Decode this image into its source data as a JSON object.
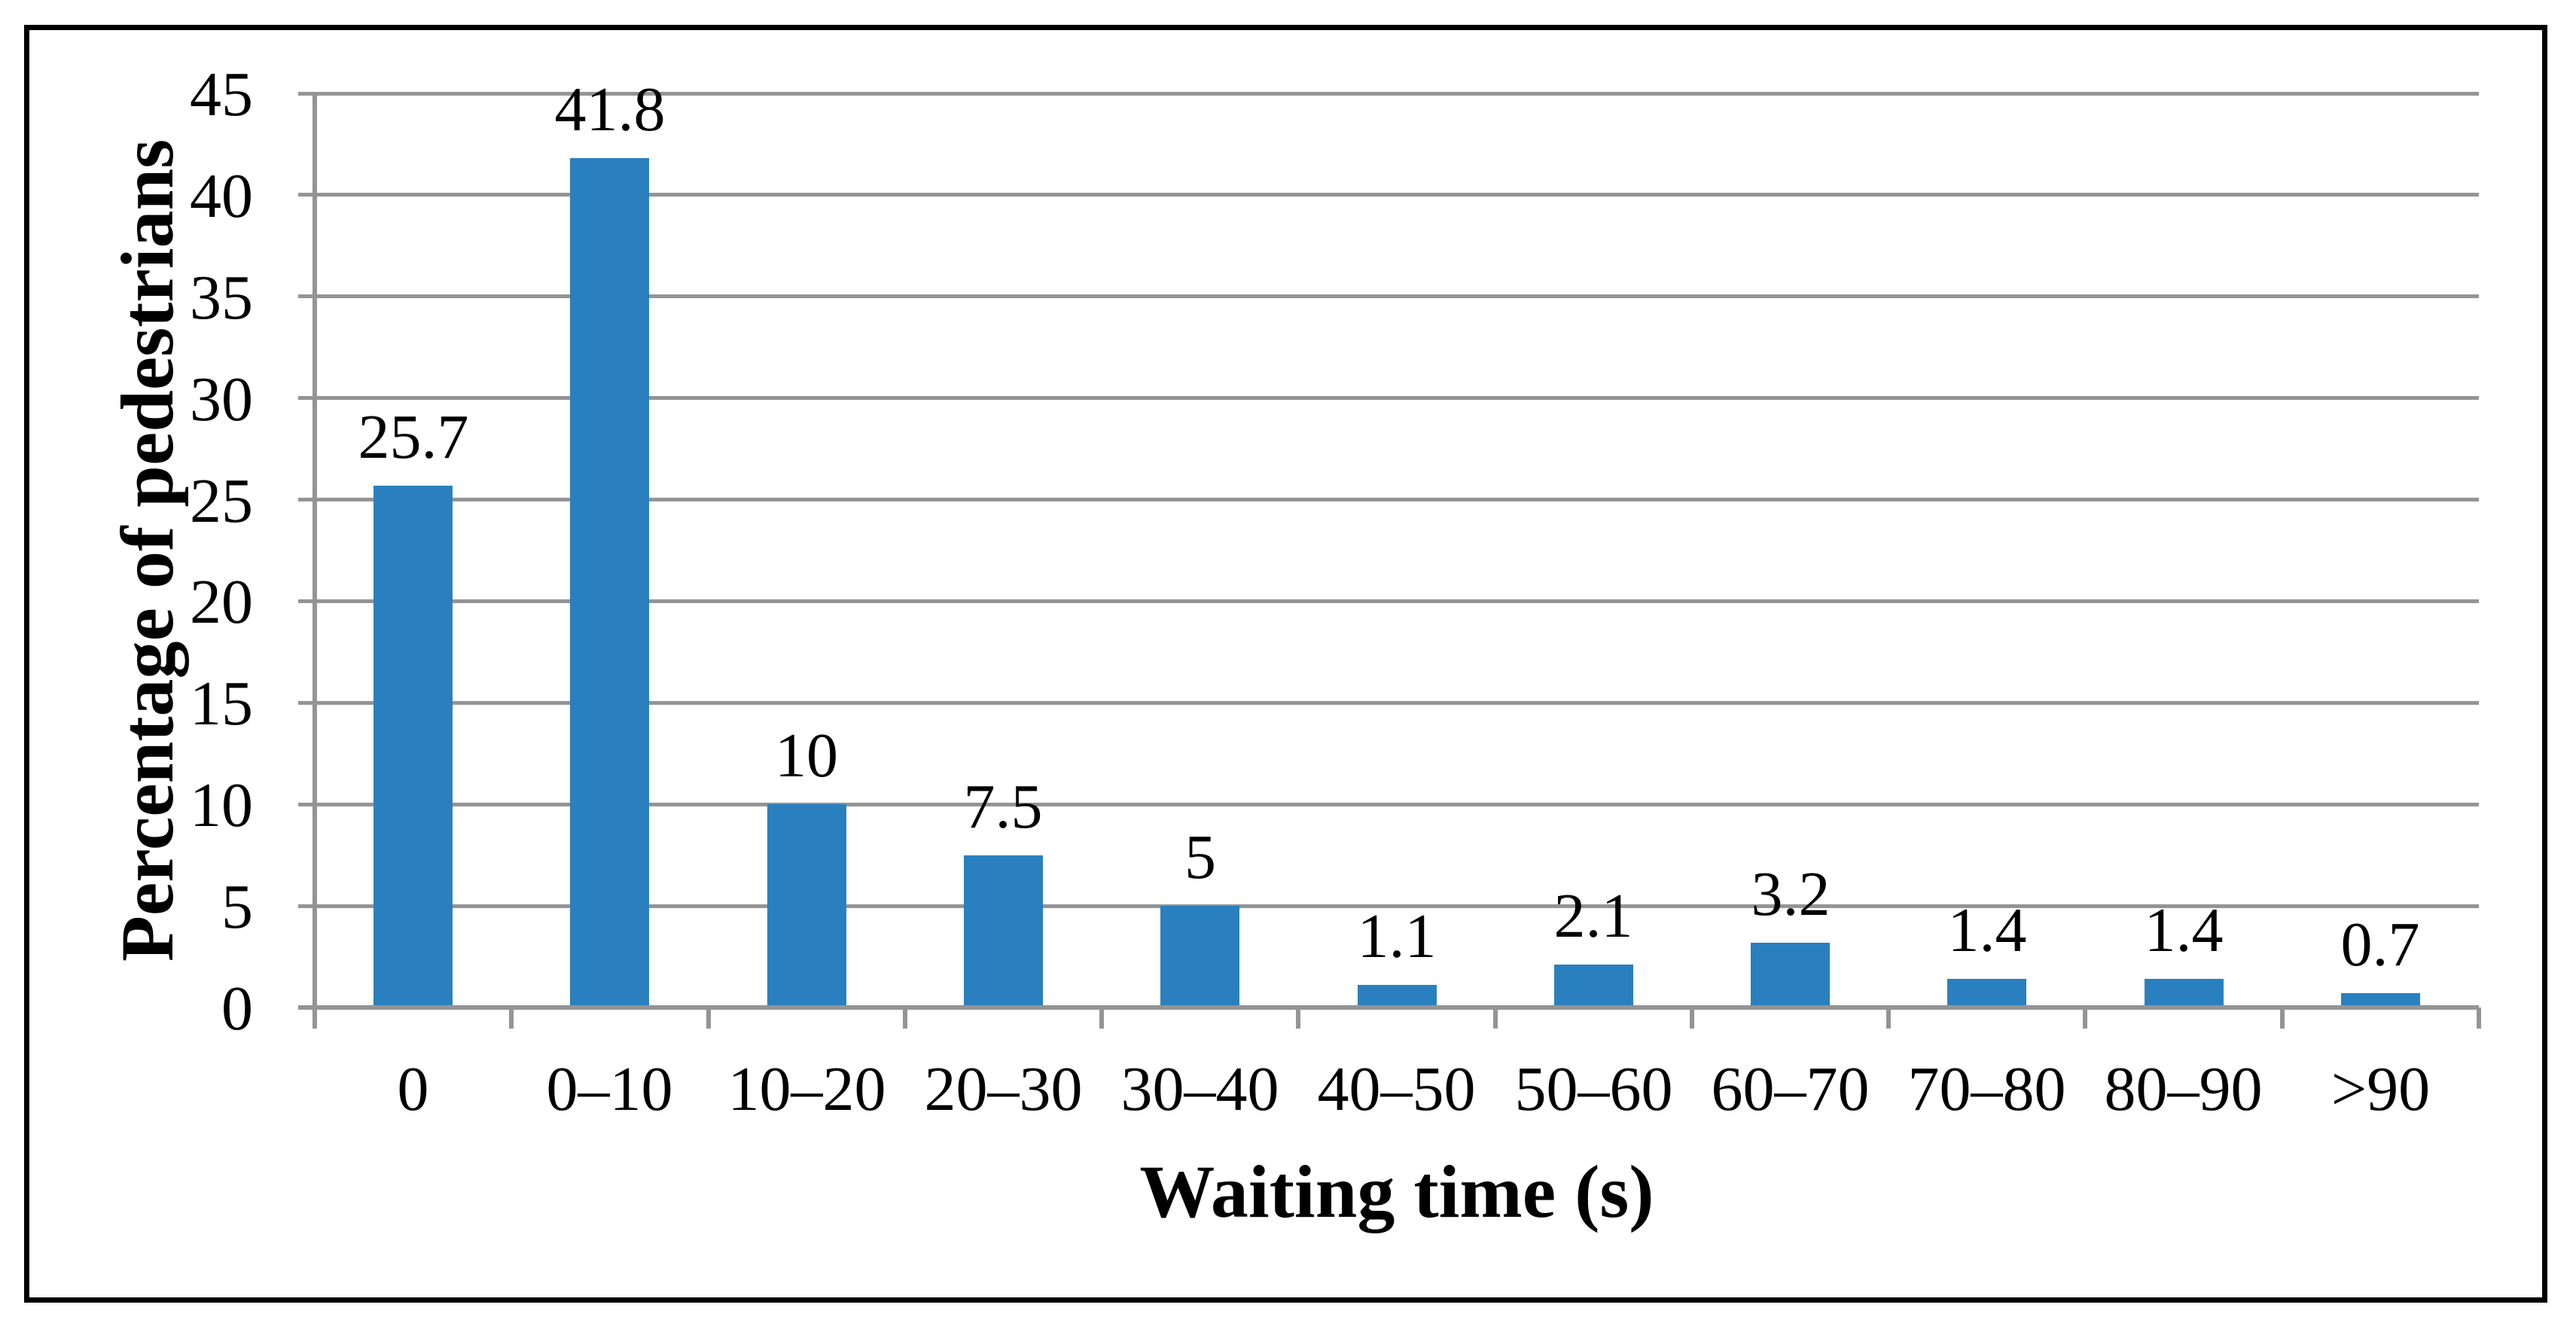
{
  "chart_data": {
    "type": "bar",
    "title": "",
    "xlabel": "Waiting time (s)",
    "ylabel": "Percentage of pedestrians",
    "categories": [
      "0",
      "0–10",
      "10–20",
      "20–30",
      "30–40",
      "40–50",
      "50–60",
      "60–70",
      "70–80",
      "80–90",
      ">90"
    ],
    "values": [
      25.7,
      41.8,
      10,
      7.5,
      5,
      1.1,
      2.1,
      3.2,
      1.4,
      1.4,
      0.7
    ],
    "value_labels": [
      "25.7",
      "41.8",
      "10",
      "7.5",
      "5",
      "1.1",
      "2.1",
      "3.2",
      "1.4",
      "1.4",
      "0.7"
    ],
    "ylim": [
      0,
      45
    ],
    "y_ticks": [
      0,
      5,
      10,
      15,
      20,
      25,
      30,
      35,
      40,
      45
    ],
    "grid": "horizontal",
    "legend": "none",
    "bar_color": "#2A80BE",
    "gridline_color": "#949494",
    "axis_color": "#949494",
    "frame_color": "#000000",
    "text_color": "#000000",
    "background_color": "#FFFFFF"
  }
}
